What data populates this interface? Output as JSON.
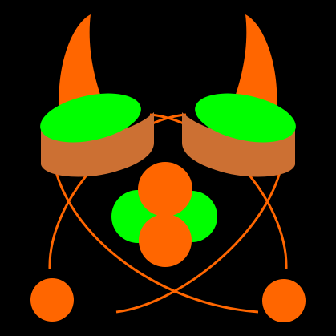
{
  "scene": {
    "background": "#000000",
    "palette": {
      "orange": "#ff6600",
      "green": "#00ff00",
      "tan": "#cc7033"
    },
    "elements": [
      "left-horn-icon",
      "right-horn-icon",
      "left-drum-icon",
      "right-drum-icon",
      "orbit-path-icons",
      "nucleus-green-spheres",
      "nucleus-orange-spheres",
      "left-electron-icon",
      "right-electron-icon"
    ]
  }
}
